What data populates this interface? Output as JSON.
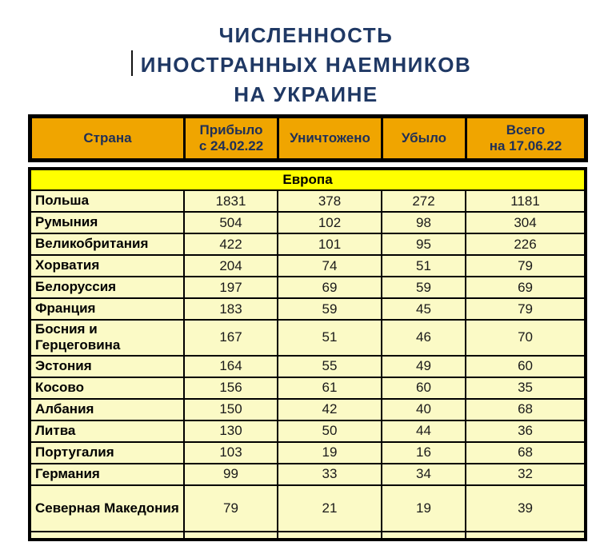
{
  "document": {
    "title_lines": [
      "ЧИСЛЕННОСТЬ",
      "ИНОСТРАННЫХ НАЕМНИКОВ",
      "НА УКРАИНЕ"
    ]
  },
  "table": {
    "headers": [
      "Страна",
      "Прибыло\nс 24.02.22",
      "Уничтожено",
      "Убыло",
      "Всего\nна 17.06.22"
    ],
    "section_label": "Европа",
    "rows": [
      [
        "Польша",
        "1831",
        "378",
        "272",
        "1181"
      ],
      [
        "Румыния",
        "504",
        "102",
        "98",
        "304"
      ],
      [
        "Великобритания",
        "422",
        "101",
        "95",
        "226"
      ],
      [
        "Хорватия",
        "204",
        "74",
        "51",
        "79"
      ],
      [
        "Белоруссия",
        "197",
        "69",
        "59",
        "69"
      ],
      [
        "Франция",
        "183",
        "59",
        "45",
        "79"
      ],
      [
        "Босния и Герцеговина",
        "167",
        "51",
        "46",
        "70"
      ],
      [
        "Эстония",
        "164",
        "55",
        "49",
        "60"
      ],
      [
        "Косово",
        "156",
        "61",
        "60",
        "35"
      ],
      [
        "Албания",
        "150",
        "42",
        "40",
        "68"
      ],
      [
        "Литва",
        "130",
        "50",
        "44",
        "36"
      ],
      [
        "Португалия",
        "103",
        "19",
        "16",
        "68"
      ],
      [
        "Германия",
        "99",
        "33",
        "34",
        "32"
      ],
      [
        "Северная Македония",
        "79",
        "21",
        "19",
        "39"
      ]
    ]
  },
  "colors": {
    "title_text": "#1F3864",
    "header_bg": "#F0A500",
    "header_text": "#1F3057",
    "section_bg": "#FFFF00",
    "row_bg": "#FBFAC6",
    "border": "#000000"
  }
}
